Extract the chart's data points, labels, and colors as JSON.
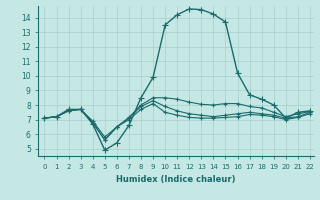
{
  "xlabel": "Humidex (Indice chaleur)",
  "xlim": [
    -0.5,
    22.3
  ],
  "ylim": [
    4.5,
    14.8
  ],
  "yticks": [
    5,
    6,
    7,
    8,
    9,
    10,
    11,
    12,
    13,
    14
  ],
  "xticks": [
    0,
    1,
    2,
    3,
    4,
    5,
    6,
    7,
    8,
    9,
    10,
    11,
    12,
    13,
    14,
    15,
    16,
    17,
    18,
    19,
    20,
    21,
    22
  ],
  "background_color": "#c5e8e5",
  "grid_color": "#a8ceca",
  "line_color": "#1a6b6b",
  "lines": [
    {
      "x": [
        0,
        1,
        2,
        3,
        4,
        5,
        6,
        7,
        8,
        9,
        10,
        11,
        12,
        13,
        14,
        15,
        16,
        17,
        18,
        19,
        20,
        21,
        22
      ],
      "y": [
        7.1,
        7.2,
        7.7,
        7.7,
        6.7,
        4.9,
        5.4,
        6.6,
        8.5,
        9.9,
        13.5,
        14.2,
        14.6,
        14.55,
        14.25,
        13.7,
        10.2,
        8.7,
        8.4,
        8.0,
        7.1,
        7.5,
        7.6
      ],
      "lw": 1.0,
      "ms": 4
    },
    {
      "x": [
        0,
        1,
        2,
        3,
        4,
        5,
        6,
        7,
        8,
        9,
        10,
        11,
        12,
        13,
        14,
        15,
        16,
        17,
        18,
        19,
        20,
        21,
        22
      ],
      "y": [
        7.1,
        7.2,
        7.65,
        7.7,
        6.9,
        5.8,
        6.5,
        7.15,
        8.0,
        8.5,
        8.5,
        8.4,
        8.2,
        8.05,
        8.0,
        8.1,
        8.1,
        7.9,
        7.8,
        7.5,
        7.2,
        7.4,
        7.55
      ],
      "lw": 0.8,
      "ms": 3
    },
    {
      "x": [
        0,
        1,
        2,
        3,
        4,
        5,
        6,
        7,
        8,
        9,
        10,
        11,
        12,
        13,
        14,
        15,
        16,
        17,
        18,
        19,
        20,
        21,
        22
      ],
      "y": [
        7.1,
        7.2,
        7.6,
        7.7,
        6.8,
        5.6,
        6.5,
        7.1,
        7.9,
        8.3,
        7.9,
        7.6,
        7.4,
        7.3,
        7.2,
        7.3,
        7.4,
        7.5,
        7.4,
        7.3,
        7.1,
        7.2,
        7.5
      ],
      "lw": 0.8,
      "ms": 3
    },
    {
      "x": [
        0,
        1,
        2,
        3,
        4,
        5,
        6,
        7,
        8,
        9,
        10,
        11,
        12,
        13,
        14,
        15,
        16,
        17,
        18,
        19,
        20,
        21,
        22
      ],
      "y": [
        7.1,
        7.2,
        7.6,
        7.7,
        6.8,
        5.6,
        6.5,
        7.0,
        7.7,
        8.1,
        7.5,
        7.3,
        7.15,
        7.1,
        7.1,
        7.15,
        7.2,
        7.35,
        7.3,
        7.2,
        7.0,
        7.15,
        7.4
      ],
      "lw": 0.8,
      "ms": 3
    }
  ]
}
